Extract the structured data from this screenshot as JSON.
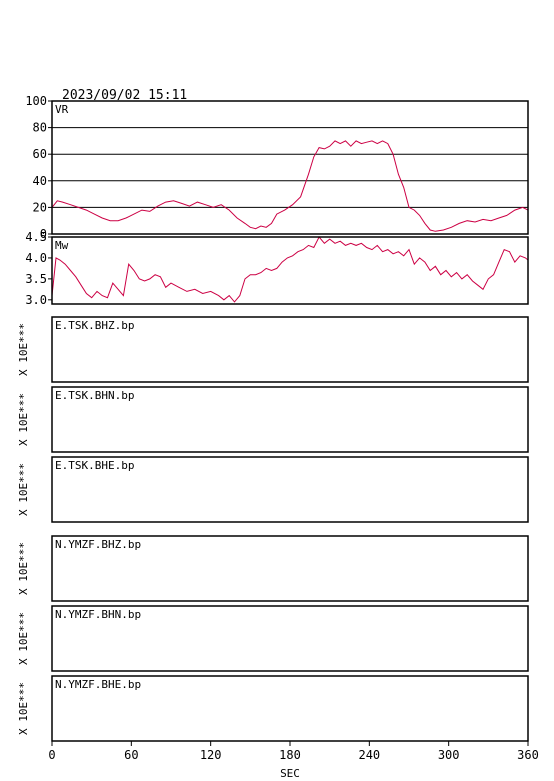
{
  "header": {
    "datetime": "2023/09/02  15:11"
  },
  "colors": {
    "trace": "#cc0044",
    "axis": "#000000",
    "grid": "#000000"
  },
  "chart_data": [
    {
      "type": "line",
      "panel_label": "VR",
      "xlim": [
        0,
        360
      ],
      "ylim": [
        0,
        100
      ],
      "yticks": [
        "0",
        "20",
        "40",
        "60",
        "80",
        "100"
      ],
      "grid": true,
      "x": [
        0,
        4,
        8,
        14,
        20,
        26,
        32,
        38,
        44,
        50,
        56,
        62,
        68,
        74,
        80,
        86,
        92,
        98,
        104,
        110,
        116,
        122,
        128,
        134,
        140,
        146,
        150,
        154,
        158,
        162,
        166,
        170,
        176,
        182,
        188,
        194,
        198,
        202,
        206,
        210,
        214,
        218,
        222,
        226,
        230,
        234,
        238,
        242,
        246,
        250,
        254,
        258,
        262,
        266,
        270,
        274,
        278,
        282,
        286,
        290,
        296,
        302,
        308,
        314,
        320,
        326,
        332,
        338,
        344,
        350,
        356,
        360
      ],
      "y": [
        20,
        25,
        24,
        22,
        20,
        18,
        15,
        12,
        10,
        10,
        12,
        15,
        18,
        17,
        21,
        24,
        25,
        23,
        21,
        24,
        22,
        20,
        22,
        18,
        12,
        8,
        5,
        4,
        6,
        5,
        8,
        15,
        18,
        22,
        28,
        45,
        58,
        65,
        64,
        66,
        70,
        68,
        70,
        66,
        70,
        68,
        69,
        70,
        68,
        70,
        68,
        60,
        45,
        35,
        20,
        18,
        14,
        8,
        3,
        2,
        3,
        5,
        8,
        10,
        9,
        11,
        10,
        12,
        14,
        18,
        20,
        18
      ]
    },
    {
      "type": "line",
      "panel_label": "Mw",
      "xlim": [
        0,
        360
      ],
      "ylim": [
        2.9,
        4.5
      ],
      "yticks": [
        "3.0",
        "3.5",
        "4.0",
        "4.5"
      ],
      "grid": false,
      "x": [
        0,
        3,
        6,
        10,
        14,
        18,
        22,
        26,
        30,
        34,
        38,
        42,
        46,
        50,
        54,
        58,
        62,
        66,
        70,
        74,
        78,
        82,
        86,
        90,
        96,
        102,
        108,
        114,
        120,
        126,
        130,
        134,
        138,
        142,
        146,
        150,
        154,
        158,
        162,
        166,
        170,
        174,
        178,
        182,
        186,
        190,
        194,
        198,
        202,
        206,
        210,
        214,
        218,
        222,
        226,
        230,
        234,
        238,
        242,
        246,
        250,
        254,
        258,
        262,
        266,
        270,
        274,
        278,
        282,
        286,
        290,
        294,
        298,
        302,
        306,
        310,
        314,
        318,
        322,
        326,
        330,
        334,
        338,
        342,
        346,
        350,
        354,
        358,
        360
      ],
      "y": [
        3.1,
        4.0,
        3.95,
        3.85,
        3.7,
        3.55,
        3.35,
        3.15,
        3.05,
        3.2,
        3.1,
        3.05,
        3.4,
        3.25,
        3.1,
        3.85,
        3.7,
        3.5,
        3.45,
        3.5,
        3.6,
        3.55,
        3.3,
        3.4,
        3.3,
        3.2,
        3.25,
        3.15,
        3.2,
        3.1,
        3.0,
        3.1,
        2.95,
        3.1,
        3.5,
        3.6,
        3.6,
        3.65,
        3.75,
        3.7,
        3.75,
        3.9,
        4.0,
        4.05,
        4.15,
        4.2,
        4.3,
        4.25,
        4.5,
        4.35,
        4.45,
        4.35,
        4.4,
        4.3,
        4.35,
        4.3,
        4.35,
        4.25,
        4.2,
        4.3,
        4.15,
        4.2,
        4.1,
        4.15,
        4.05,
        4.2,
        3.85,
        4.0,
        3.9,
        3.7,
        3.8,
        3.6,
        3.7,
        3.55,
        3.65,
        3.5,
        3.6,
        3.45,
        3.35,
        3.25,
        3.5,
        3.6,
        3.9,
        4.2,
        4.15,
        3.9,
        4.05,
        4.0,
        3.95
      ]
    }
  ],
  "traces": [
    {
      "label": "E.TSK.BHZ.bp",
      "ylabel": "X 10E***"
    },
    {
      "label": "E.TSK.BHN.bp",
      "ylabel": "X 10E***"
    },
    {
      "label": "E.TSK.BHE.bp",
      "ylabel": "X 10E***"
    },
    {
      "label": "N.YMZF.BHZ.bp",
      "ylabel": "X 10E***"
    },
    {
      "label": "N.YMZF.BHN.bp",
      "ylabel": "X 10E***"
    },
    {
      "label": "N.YMZF.BHE.bp",
      "ylabel": "X 10E***"
    }
  ],
  "xaxis": {
    "label": "SEC",
    "ticks": [
      0,
      60,
      120,
      180,
      240,
      300,
      360
    ]
  }
}
